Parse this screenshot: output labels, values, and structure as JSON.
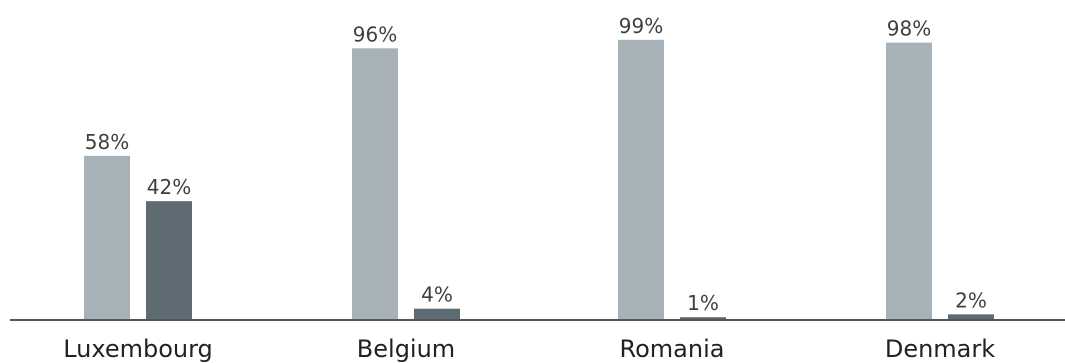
{
  "chart_data": {
    "type": "bar",
    "title": "",
    "xlabel": "",
    "ylabel": "",
    "categories": [
      "Luxembourg",
      "Belgium",
      "Romania",
      "Denmark"
    ],
    "series": [
      {
        "values": [
          58,
          96,
          99,
          98
        ],
        "value_labels": [
          "58%",
          "96%",
          "99%",
          "98%"
        ],
        "color": "#a6b1b8"
      },
      {
        "values": [
          42,
          4,
          1,
          2
        ],
        "value_labels": [
          "42%",
          "4%",
          "1%",
          "2%"
        ],
        "color": "#5e6b73"
      }
    ],
    "ylim": [
      0,
      100
    ],
    "grid": false,
    "legend": "none",
    "axis_color": "#555555"
  }
}
